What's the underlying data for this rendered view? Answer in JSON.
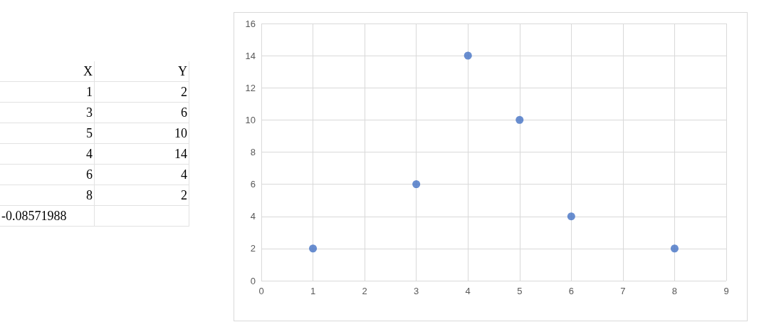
{
  "chart_data": {
    "type": "scatter",
    "x": [
      1,
      3,
      5,
      4,
      6,
      8
    ],
    "values": [
      2,
      6,
      10,
      14,
      4,
      2
    ],
    "color": "#4472c4",
    "annotations": [
      "X",
      "Y",
      "1",
      "2",
      "3",
      "6",
      "5",
      "10",
      "4",
      "14",
      "6",
      "4",
      "8",
      "2",
      "-0.08571988"
    ],
    "xlim": [
      0,
      9
    ],
    "xticks": [
      0,
      1,
      2,
      3,
      4,
      5,
      6,
      7,
      8,
      9
    ],
    "ylim": [
      0,
      16
    ],
    "yticks": [
      0,
      2,
      4,
      6,
      8,
      10,
      12,
      14,
      16
    ],
    "grid": true,
    "marker": "circle"
  }
}
